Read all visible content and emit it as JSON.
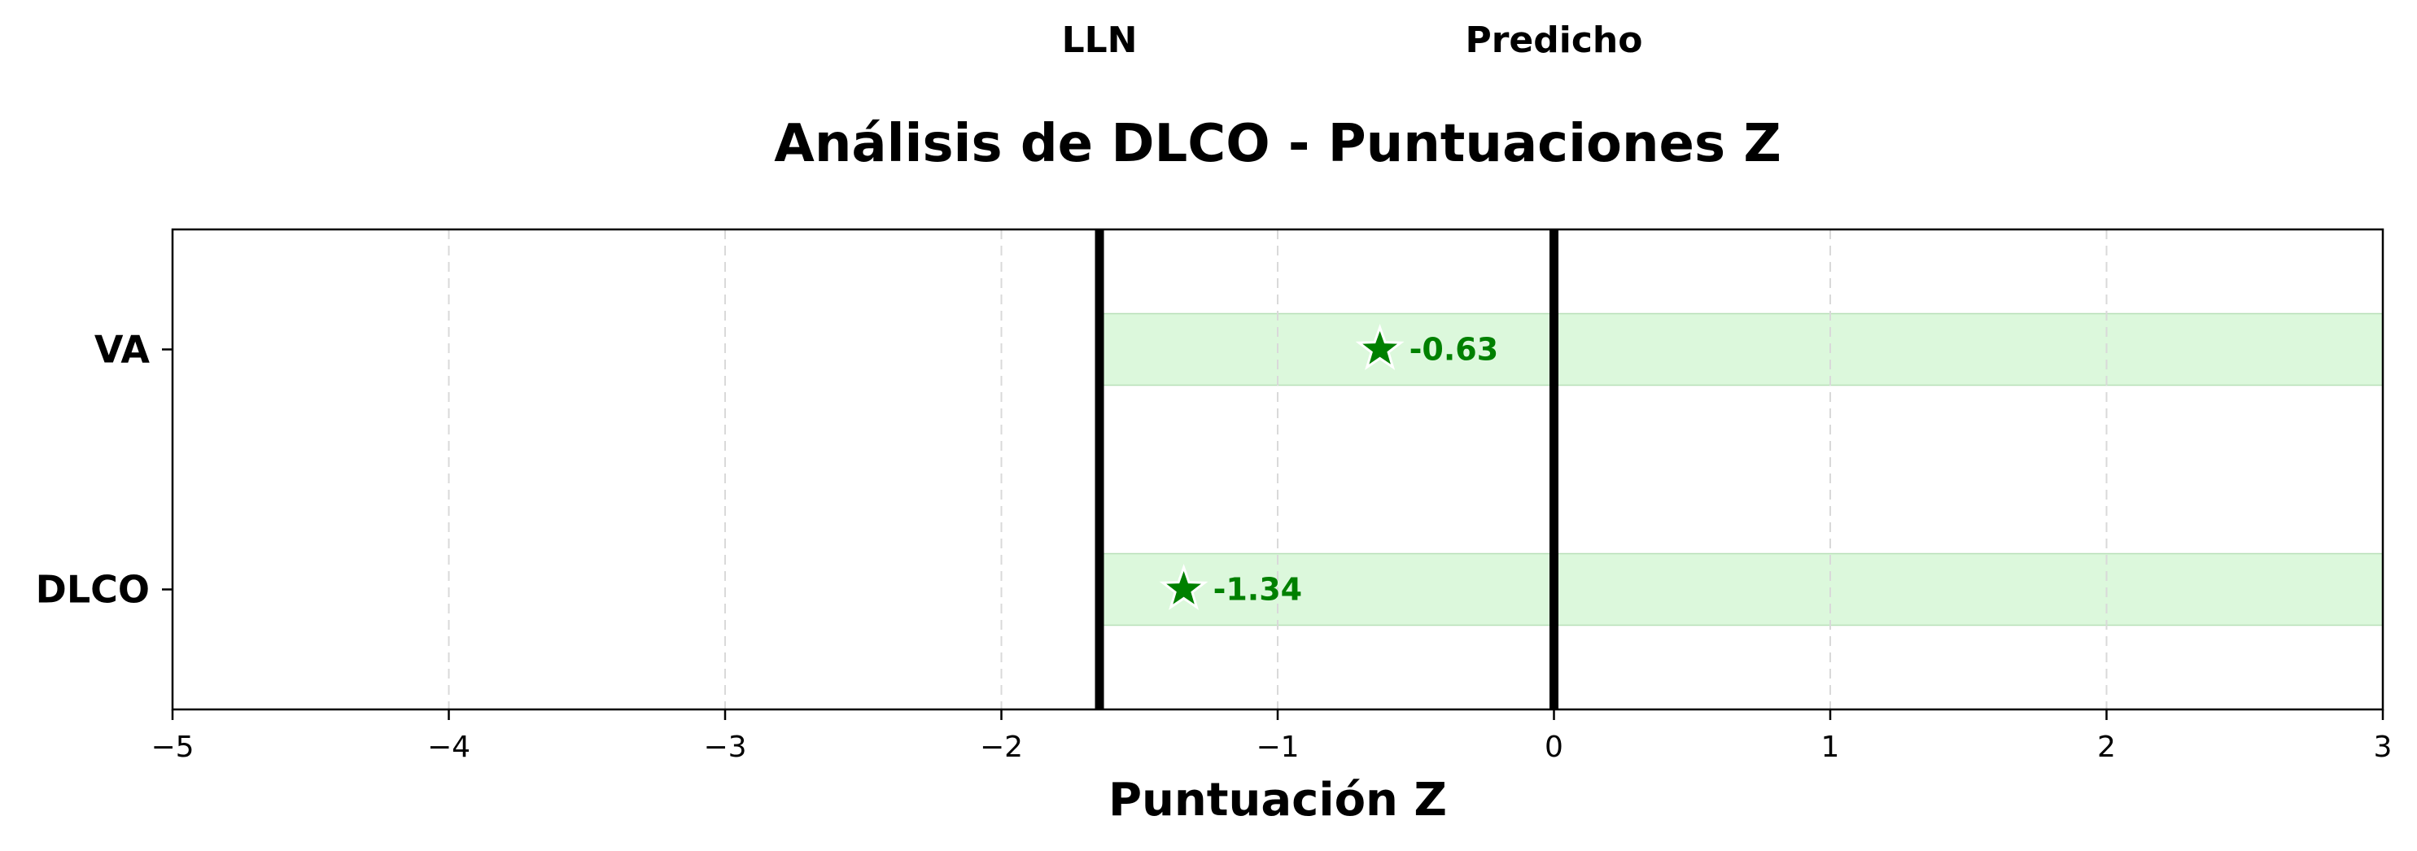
{
  "chart_data": {
    "type": "scatter",
    "title": "Análisis de DLCO - Puntuaciones Z",
    "xlabel": "Puntuación Z",
    "ylabel": "",
    "xlim": [
      -5,
      3
    ],
    "xticks": [
      -5,
      -4,
      -3,
      -2,
      -1,
      0,
      1,
      2,
      3
    ],
    "xtick_labels": [
      "−5",
      "−4",
      "−3",
      "−2",
      "−1",
      "0",
      "1",
      "2",
      "3"
    ],
    "categories": [
      "VA",
      "DLCO"
    ],
    "points": [
      {
        "category": "VA",
        "value": -0.63,
        "label": "-0.63"
      },
      {
        "category": "DLCO",
        "value": -1.34,
        "label": "-1.34"
      }
    ],
    "normal_band": {
      "from": -1.645,
      "to": 3,
      "color": "#dcf8dc"
    },
    "reference_lines": [
      {
        "label": "LLN",
        "value": -1.645
      },
      {
        "label": "Predicho",
        "value": 0
      }
    ],
    "marker": "star",
    "marker_color": "#008000",
    "grid": "vertical dashed"
  }
}
